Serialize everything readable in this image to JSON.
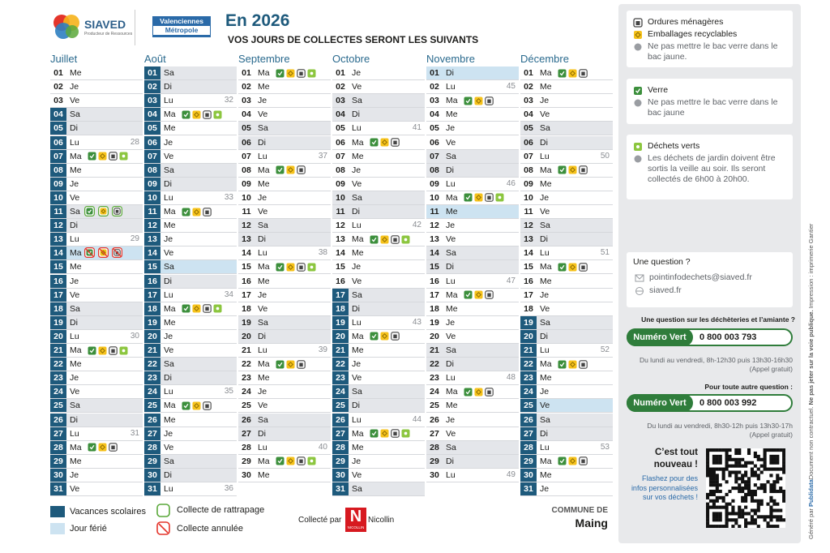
{
  "header": {
    "brand": "SIAVED",
    "brand_tagline": "Producteur de Ressources",
    "partner_1": "Valenciennes",
    "partner_2": "Métropole",
    "title": "En 2026",
    "subtitle": "VOS JOURS DE COLLECTES SERONT LES SUIVANTS"
  },
  "months": [
    {
      "name": "Juillet",
      "days": [
        [
          "01",
          "Me"
        ],
        [
          "02",
          "Je"
        ],
        [
          "03",
          "Ve"
        ],
        [
          "04",
          "Sa"
        ],
        [
          "05",
          "Di"
        ],
        [
          "06",
          "Lu",
          28
        ],
        [
          "07",
          "Ma"
        ],
        [
          "08",
          "Me"
        ],
        [
          "09",
          "Je"
        ],
        [
          "10",
          "Ve"
        ],
        [
          "11",
          "Sa"
        ],
        [
          "12",
          "Di"
        ],
        [
          "13",
          "Lu",
          29
        ],
        [
          "14",
          "Ma"
        ],
        [
          "15",
          "Me"
        ],
        [
          "16",
          "Je"
        ],
        [
          "17",
          "Ve"
        ],
        [
          "18",
          "Sa"
        ],
        [
          "19",
          "Di"
        ],
        [
          "20",
          "Lu",
          30
        ],
        [
          "21",
          "Ma"
        ],
        [
          "22",
          "Me"
        ],
        [
          "23",
          "Je"
        ],
        [
          "24",
          "Ve"
        ],
        [
          "25",
          "Sa"
        ],
        [
          "26",
          "Di"
        ],
        [
          "27",
          "Lu",
          31
        ],
        [
          "28",
          "Ma"
        ],
        [
          "29",
          "Me"
        ],
        [
          "30",
          "Je"
        ],
        [
          "31",
          "Ve"
        ]
      ]
    },
    {
      "name": "Août",
      "days": [
        [
          "01",
          "Sa"
        ],
        [
          "02",
          "Di"
        ],
        [
          "03",
          "Lu",
          32
        ],
        [
          "04",
          "Ma"
        ],
        [
          "05",
          "Me"
        ],
        [
          "06",
          "Je"
        ],
        [
          "07",
          "Ve"
        ],
        [
          "08",
          "Sa"
        ],
        [
          "09",
          "Di"
        ],
        [
          "10",
          "Lu",
          33
        ],
        [
          "11",
          "Ma"
        ],
        [
          "12",
          "Me"
        ],
        [
          "13",
          "Je"
        ],
        [
          "14",
          "Ve"
        ],
        [
          "15",
          "Sa"
        ],
        [
          "16",
          "Di"
        ],
        [
          "17",
          "Lu",
          34
        ],
        [
          "18",
          "Ma"
        ],
        [
          "19",
          "Me"
        ],
        [
          "20",
          "Je"
        ],
        [
          "21",
          "Ve"
        ],
        [
          "22",
          "Sa"
        ],
        [
          "23",
          "Di"
        ],
        [
          "24",
          "Lu",
          35
        ],
        [
          "25",
          "Ma"
        ],
        [
          "26",
          "Me"
        ],
        [
          "27",
          "Je"
        ],
        [
          "28",
          "Ve"
        ],
        [
          "29",
          "Sa"
        ],
        [
          "30",
          "Di"
        ],
        [
          "31",
          "Lu",
          36
        ]
      ]
    },
    {
      "name": "Septembre",
      "days": [
        [
          "01",
          "Ma"
        ],
        [
          "02",
          "Me"
        ],
        [
          "03",
          "Je"
        ],
        [
          "04",
          "Ve"
        ],
        [
          "05",
          "Sa"
        ],
        [
          "06",
          "Di"
        ],
        [
          "07",
          "Lu",
          37
        ],
        [
          "08",
          "Ma"
        ],
        [
          "09",
          "Me"
        ],
        [
          "10",
          "Je"
        ],
        [
          "11",
          "Ve"
        ],
        [
          "12",
          "Sa"
        ],
        [
          "13",
          "Di"
        ],
        [
          "14",
          "Lu",
          38
        ],
        [
          "15",
          "Ma"
        ],
        [
          "16",
          "Me"
        ],
        [
          "17",
          "Je"
        ],
        [
          "18",
          "Ve"
        ],
        [
          "19",
          "Sa"
        ],
        [
          "20",
          "Di"
        ],
        [
          "21",
          "Lu",
          39
        ],
        [
          "22",
          "Ma"
        ],
        [
          "23",
          "Me"
        ],
        [
          "24",
          "Je"
        ],
        [
          "25",
          "Ve"
        ],
        [
          "26",
          "Sa"
        ],
        [
          "27",
          "Di"
        ],
        [
          "28",
          "Lu",
          40
        ],
        [
          "29",
          "Ma"
        ],
        [
          "30",
          "Me"
        ]
      ]
    },
    {
      "name": "Octobre",
      "days": [
        [
          "01",
          "Je"
        ],
        [
          "02",
          "Ve"
        ],
        [
          "03",
          "Sa"
        ],
        [
          "04",
          "Di"
        ],
        [
          "05",
          "Lu",
          41
        ],
        [
          "06",
          "Ma"
        ],
        [
          "07",
          "Me"
        ],
        [
          "08",
          "Je"
        ],
        [
          "09",
          "Ve"
        ],
        [
          "10",
          "Sa"
        ],
        [
          "11",
          "Di"
        ],
        [
          "12",
          "Lu",
          42
        ],
        [
          "13",
          "Ma"
        ],
        [
          "14",
          "Me"
        ],
        [
          "15",
          "Je"
        ],
        [
          "16",
          "Ve"
        ],
        [
          "17",
          "Sa"
        ],
        [
          "18",
          "Di"
        ],
        [
          "19",
          "Lu",
          43
        ],
        [
          "20",
          "Ma"
        ],
        [
          "21",
          "Me"
        ],
        [
          "22",
          "Je"
        ],
        [
          "23",
          "Ve"
        ],
        [
          "24",
          "Sa"
        ],
        [
          "25",
          "Di"
        ],
        [
          "26",
          "Lu",
          44
        ],
        [
          "27",
          "Ma"
        ],
        [
          "28",
          "Me"
        ],
        [
          "29",
          "Je"
        ],
        [
          "30",
          "Ve"
        ],
        [
          "31",
          "Sa"
        ]
      ]
    },
    {
      "name": "Novembre",
      "days": [
        [
          "01",
          "Di"
        ],
        [
          "02",
          "Lu",
          45
        ],
        [
          "03",
          "Ma"
        ],
        [
          "04",
          "Me"
        ],
        [
          "05",
          "Je"
        ],
        [
          "06",
          "Ve"
        ],
        [
          "07",
          "Sa"
        ],
        [
          "08",
          "Di"
        ],
        [
          "09",
          "Lu",
          46
        ],
        [
          "10",
          "Ma"
        ],
        [
          "11",
          "Me"
        ],
        [
          "12",
          "Je"
        ],
        [
          "13",
          "Ve"
        ],
        [
          "14",
          "Sa"
        ],
        [
          "15",
          "Di"
        ],
        [
          "16",
          "Lu",
          47
        ],
        [
          "17",
          "Ma"
        ],
        [
          "18",
          "Me"
        ],
        [
          "19",
          "Je"
        ],
        [
          "20",
          "Ve"
        ],
        [
          "21",
          "Sa"
        ],
        [
          "22",
          "Di"
        ],
        [
          "23",
          "Lu",
          48
        ],
        [
          "24",
          "Ma"
        ],
        [
          "25",
          "Me"
        ],
        [
          "26",
          "Je"
        ],
        [
          "27",
          "Ve"
        ],
        [
          "28",
          "Sa"
        ],
        [
          "29",
          "Di"
        ],
        [
          "30",
          "Lu",
          49
        ]
      ]
    },
    {
      "name": "Décembre",
      "days": [
        [
          "01",
          "Ma"
        ],
        [
          "02",
          "Me"
        ],
        [
          "03",
          "Je"
        ],
        [
          "04",
          "Ve"
        ],
        [
          "05",
          "Sa"
        ],
        [
          "06",
          "Di"
        ],
        [
          "07",
          "Lu",
          50
        ],
        [
          "08",
          "Ma"
        ],
        [
          "09",
          "Me"
        ],
        [
          "10",
          "Je"
        ],
        [
          "11",
          "Ve"
        ],
        [
          "12",
          "Sa"
        ],
        [
          "13",
          "Di"
        ],
        [
          "14",
          "Lu",
          51
        ],
        [
          "15",
          "Ma"
        ],
        [
          "16",
          "Me"
        ],
        [
          "17",
          "Je"
        ],
        [
          "18",
          "Ve"
        ],
        [
          "19",
          "Sa"
        ],
        [
          "20",
          "Di"
        ],
        [
          "21",
          "Lu",
          52
        ],
        [
          "22",
          "Ma"
        ],
        [
          "23",
          "Me"
        ],
        [
          "24",
          "Je"
        ],
        [
          "25",
          "Ve"
        ],
        [
          "26",
          "Sa"
        ],
        [
          "27",
          "Di"
        ],
        [
          "28",
          "Lu",
          53
        ],
        [
          "29",
          "Ma"
        ],
        [
          "30",
          "Me"
        ],
        [
          "31",
          "Je"
        ]
      ]
    }
  ],
  "legend": {
    "vacances": "Vacances scolaires",
    "ferie": "Jour férié",
    "rattrapage": "Collecte de rattrapage",
    "annulee": "Collecte annulée",
    "collecte_par": "Collecté par",
    "collector": "Nicollin",
    "collector_logo": "NICOLLIN",
    "commune_label": "COMMUNE DE",
    "commune": "Maing"
  },
  "sidebar": {
    "card_1": {
      "item_1": "Ordures ménagères",
      "item_2": "Emballages recyclables",
      "note": "Ne pas mettre le bac verre dans le bac jaune."
    },
    "card_2": {
      "item": "Verre",
      "note": "Ne pas mettre le bac verre dans le bac jaune"
    },
    "card_3": {
      "item": "Déchets verts",
      "note": "Les déchets de jardin doivent être sortis la veille au soir. Ils seront collectés de 6h00 à 20h00."
    },
    "question": {
      "title": "Une question ?",
      "email": "pointinfodechets@siaved.fr",
      "web": "siaved.fr"
    },
    "phone_1": {
      "heading": "Une question sur les déchèteries et l’amiante ?",
      "label": "Numéro Vert",
      "number": "0 800 003 793",
      "hours": "Du lundi au vendredi, 8h-12h30 puis 13h30-16h30",
      "free": "(Appel gratuit)"
    },
    "phone_2": {
      "heading": "Pour toute autre question :",
      "label": "Numéro Vert",
      "number": "0 800 003 992",
      "hours": "Du lundi au vendredi, 8h30-12h puis 13h30-17h",
      "free": "(Appel gratuit)"
    },
    "qr": {
      "title": "C’est tout nouveau !",
      "text": "Flashez pour des infos personnalisées sur vos déchets !"
    }
  },
  "footer": {
    "generated": "Généré par",
    "publidata": "Publidata",
    "disclaimer": "Document non contractuel.",
    "warning": "Ne pas jeter sur la voie publique.",
    "print": "Impression : imprimerie Gantier"
  }
}
